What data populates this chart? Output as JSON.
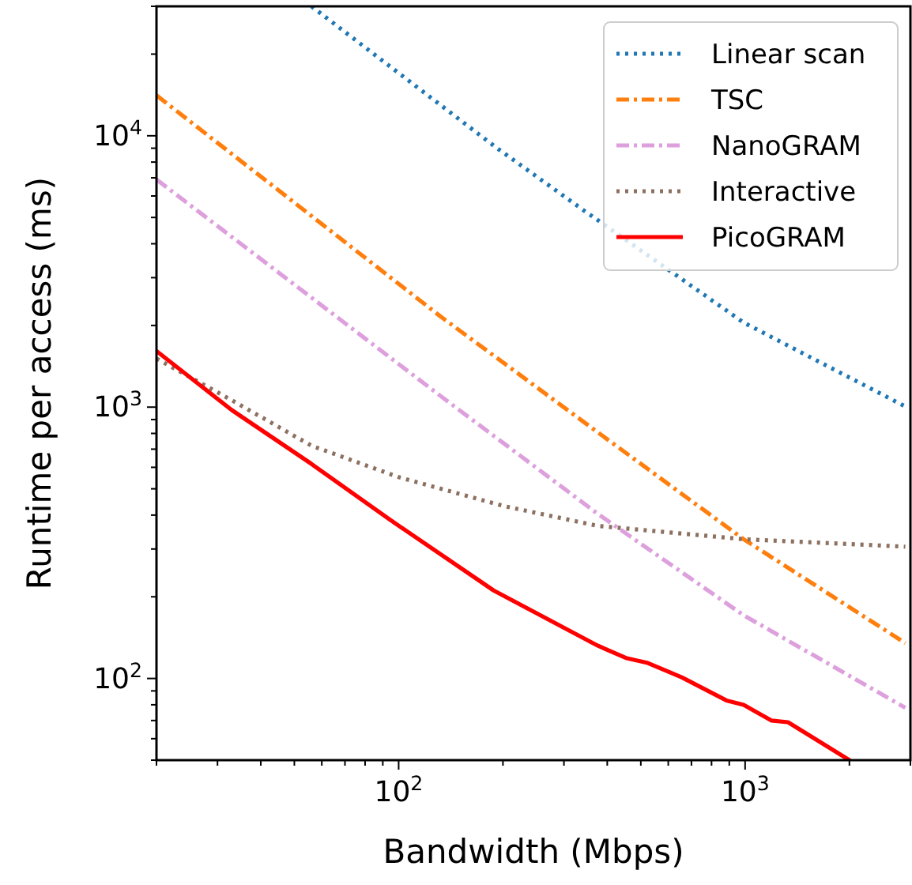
{
  "chart_data": {
    "type": "line",
    "xlabel": "Bandwidth (Mbps)",
    "ylabel": "Runtime per access (ms)",
    "log": "xy",
    "grid": false,
    "legend": "top right",
    "xlim": [
      20,
      3000
    ],
    "ylim": [
      50,
      30000
    ],
    "xticks": [
      {
        "value": 20,
        "label": null
      },
      {
        "value": 30,
        "label": null
      },
      {
        "value": 40,
        "label": null
      },
      {
        "value": 50,
        "label": null
      },
      {
        "value": 60,
        "label": null
      },
      {
        "value": 70,
        "label": null
      },
      {
        "value": 80,
        "label": null
      },
      {
        "value": 90,
        "label": null
      },
      {
        "value": 100,
        "label": "10$^{2}$"
      },
      {
        "value": 200,
        "label": null
      },
      {
        "value": 300,
        "label": null
      },
      {
        "value": 400,
        "label": null
      },
      {
        "value": 500,
        "label": null
      },
      {
        "value": 600,
        "label": null
      },
      {
        "value": 700,
        "label": null
      },
      {
        "value": 800,
        "label": null
      },
      {
        "value": 900,
        "label": null
      },
      {
        "value": 1000,
        "label": "10$^{3}$"
      },
      {
        "value": 2000,
        "label": null
      },
      {
        "value": 3000,
        "label": null
      }
    ],
    "yticks": [
      {
        "value": 50,
        "label": null
      },
      {
        "value": 60,
        "label": null
      },
      {
        "value": 70,
        "label": null
      },
      {
        "value": 80,
        "label": null
      },
      {
        "value": 90,
        "label": null
      },
      {
        "value": 100,
        "label": "10$^{2}$"
      },
      {
        "value": 200,
        "label": null
      },
      {
        "value": 300,
        "label": null
      },
      {
        "value": 400,
        "label": null
      },
      {
        "value": 500,
        "label": null
      },
      {
        "value": 600,
        "label": null
      },
      {
        "value": 700,
        "label": null
      },
      {
        "value": 800,
        "label": null
      },
      {
        "value": 900,
        "label": null
      },
      {
        "value": 1000,
        "label": "10$^{3}$"
      },
      {
        "value": 2000,
        "label": null
      },
      {
        "value": 3000,
        "label": null
      },
      {
        "value": 4000,
        "label": null
      },
      {
        "value": 5000,
        "label": null
      },
      {
        "value": 6000,
        "label": null
      },
      {
        "value": 7000,
        "label": null
      },
      {
        "value": 8000,
        "label": null
      },
      {
        "value": 9000,
        "label": null
      },
      {
        "value": 10000,
        "label": "10$^{4}$"
      },
      {
        "value": 20000,
        "label": null
      },
      {
        "value": 30000,
        "label": null
      }
    ],
    "series": [
      {
        "name": "Linear scan",
        "color": "#1f77b4",
        "line_style": "dotted",
        "x": [
          56,
          108,
          191,
          338,
          990,
          2900
        ],
        "values": [
          30000,
          15800,
          9060,
          5370,
          2050,
          1005
        ]
      },
      {
        "name": "TSC",
        "color": "#ff7f0e",
        "line_style": "dashed",
        "x": [
          20,
          132,
          376,
          990,
          2900
        ],
        "values": [
          14100,
          2160,
          807,
          326,
          135
        ]
      },
      {
        "name": "NanoGRAM",
        "color": "#dda0dd",
        "line_style": "dashed",
        "x": [
          20,
          132,
          376,
          990,
          2900
        ],
        "values": [
          6900,
          1100,
          404,
          171,
          78
        ]
      },
      {
        "name": "Interactive",
        "color": "#8c7060",
        "line_style": "dotted",
        "x": [
          20,
          33,
          56,
          100,
          201,
          376,
          990,
          2900
        ],
        "values": [
          1510,
          1060,
          721,
          552,
          432,
          365,
          326,
          306
        ]
      },
      {
        "name": "PicoGRAM",
        "color": "#ff0000",
        "line_style": "solid",
        "x": [
          20,
          33,
          56,
          94,
          188,
          376,
          453,
          524,
          656,
          883,
          990,
          1190,
          1330,
          2000
        ],
        "values": [
          1610,
          975,
          618,
          386,
          211,
          132,
          119,
          114,
          101,
          83,
          80,
          70,
          69,
          50
        ]
      }
    ]
  }
}
